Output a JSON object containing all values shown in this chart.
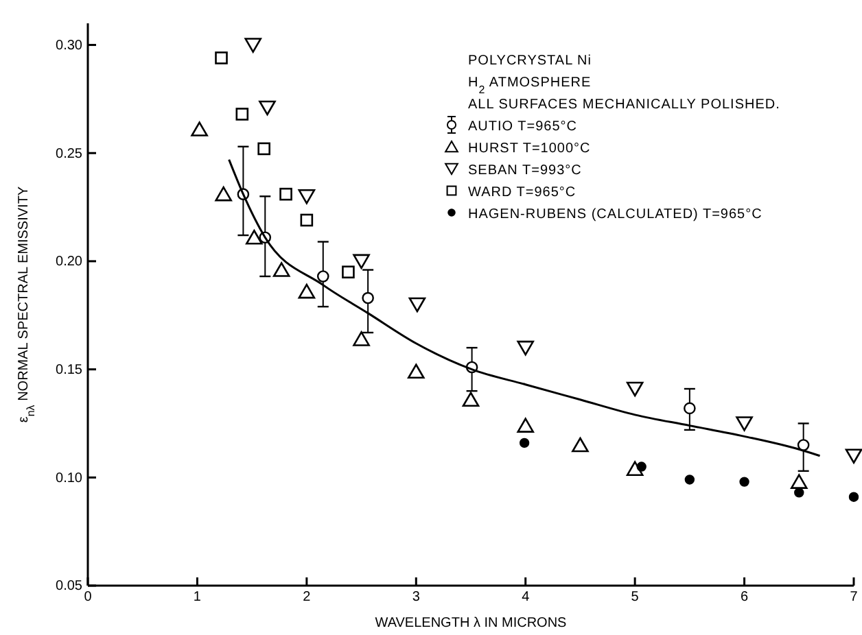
{
  "chart_data": {
    "type": "scatter",
    "xlabel": "WAVELENGTH λ IN MICRONS",
    "ylabel": "ε$_{nλ}$  NORMAL SPECTRAL EMISSIVITY",
    "annotations": [
      "POLYCRYSTAL Ni",
      "H$_{2}$ ATMOSPHERE",
      "ALL SURFACES MECHANICALLY POLISHED."
    ],
    "xlim": [
      0,
      7
    ],
    "xticks": [
      0,
      1,
      2,
      3,
      4,
      5,
      6,
      7
    ],
    "ylim": [
      0.05,
      0.31
    ],
    "yticks": [
      {
        "value": 0.05,
        "label": "0.05"
      },
      {
        "value": 0.1,
        "label": "0.10"
      },
      {
        "value": 0.15,
        "label": "0.15"
      },
      {
        "value": 0.2,
        "label": "0.20"
      },
      {
        "value": 0.25,
        "label": "0.25"
      },
      {
        "value": 0.3,
        "label": "0.30"
      }
    ],
    "grid": false,
    "legend": "top right",
    "series": [
      {
        "name": "AUTIO  T=965°C",
        "color": "#000000",
        "marker": "circle",
        "x": [
          1.42,
          1.62,
          2.15,
          2.56,
          3.51,
          5.5,
          6.54
        ],
        "values": [
          0.231,
          0.211,
          0.193,
          0.183,
          0.151,
          0.132,
          0.115
        ],
        "errors": [
          [
            0.212,
            0.253
          ],
          [
            0.193,
            0.23
          ],
          [
            0.179,
            0.209
          ],
          [
            0.167,
            0.196
          ],
          [
            0.14,
            0.16
          ],
          [
            0.122,
            0.141
          ],
          [
            0.103,
            0.125
          ]
        ]
      },
      {
        "name": "HURST  T=1000°C",
        "color": "#000000",
        "marker": "triangle",
        "x": [
          1.02,
          1.24,
          1.52,
          1.77,
          2.0,
          2.5,
          3.0,
          3.5,
          4.0,
          4.5,
          5.0,
          6.5
        ],
        "values": [
          0.261,
          0.231,
          0.211,
          0.196,
          0.186,
          0.164,
          0.149,
          0.136,
          0.124,
          0.115,
          0.104,
          0.098
        ]
      },
      {
        "name": "SEBAN  T=993°C",
        "color": "#000000",
        "marker": "triangle-down",
        "x": [
          1.51,
          1.64,
          2.0,
          2.5,
          3.01,
          4.0,
          5.0,
          6.0,
          7.0
        ],
        "values": [
          0.3,
          0.271,
          0.23,
          0.2,
          0.18,
          0.16,
          0.141,
          0.125,
          0.11
        ]
      },
      {
        "name": "WARD  T=965°C",
        "color": "#000000",
        "marker": "square",
        "x": [
          1.22,
          1.41,
          1.61,
          1.81,
          2.0,
          2.38
        ],
        "values": [
          0.294,
          0.268,
          0.252,
          0.231,
          0.219,
          0.195
        ]
      },
      {
        "name": "HAGEN-RUBENS (CALCULATED) T=965°C",
        "color": "#000000",
        "marker": "circle",
        "x": [
          3.99,
          5.06,
          5.5,
          6.0,
          6.5,
          7.0
        ],
        "values": [
          0.116,
          0.105,
          0.099,
          0.098,
          0.093,
          0.091
        ]
      },
      {
        "type": "line",
        "color": "#000000",
        "marker": "none",
        "line_style": "solid",
        "x": [
          1.29,
          1.42,
          1.62,
          2.15,
          2.56,
          3.0,
          3.51,
          4.0,
          4.5,
          5.0,
          5.5,
          6.0,
          6.5,
          6.69
        ],
        "values": [
          0.247,
          0.231,
          0.211,
          0.189,
          0.176,
          0.162,
          0.15,
          0.143,
          0.136,
          0.129,
          0.124,
          0.119,
          0.113,
          0.11
        ]
      }
    ]
  }
}
